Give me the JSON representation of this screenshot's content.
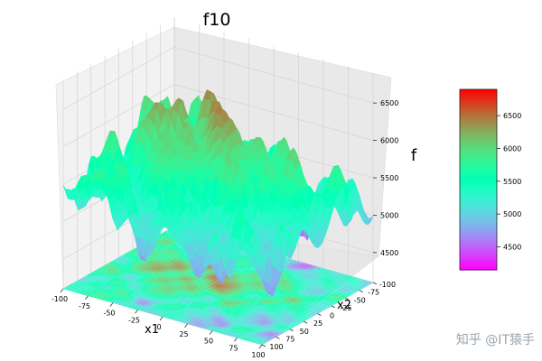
{
  "chart_data": {
    "type": "surface3d",
    "title": "f10",
    "xlabel": "x1",
    "ylabel": "x2",
    "zlabel": "f",
    "x_ticks": [
      -100,
      -75,
      -50,
      -25,
      0,
      25,
      50,
      75,
      100
    ],
    "y_ticks": [
      -100,
      -75,
      -50,
      -25,
      0,
      25,
      50,
      75,
      100
    ],
    "z_ticks": [
      4500,
      5000,
      5500,
      6000,
      6500
    ],
    "xlim": [
      -100,
      100
    ],
    "ylim": [
      -100,
      100
    ],
    "zlim": [
      4100,
      6900
    ],
    "colormap": "rainbow",
    "colorbar": {
      "ticks": [
        4500,
        5000,
        5500,
        6000,
        6500
      ],
      "min": 4150,
      "max": 6900,
      "placement": "right"
    },
    "grid": true,
    "contour_projection": "bottom"
  },
  "watermark": "知乎 @IT猿手"
}
